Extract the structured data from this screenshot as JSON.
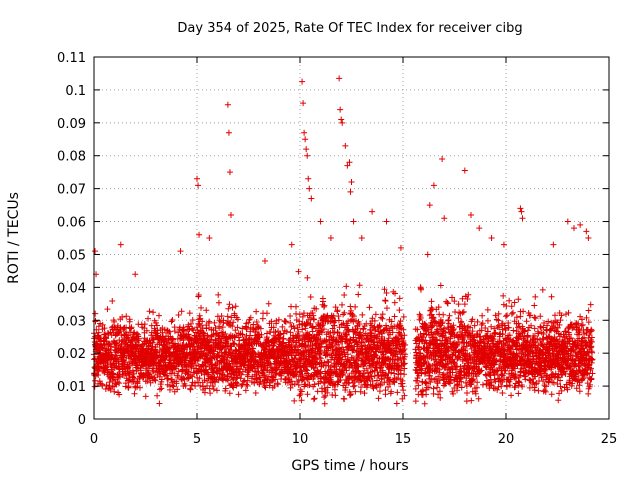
{
  "chart_data": {
    "type": "scatter",
    "title": "Day 354 of 2025, Rate Of TEC Index for receiver cibg",
    "xlabel": "GPS time / hours",
    "ylabel": "ROTI / TECUs",
    "xlim": [
      0,
      25
    ],
    "ylim": [
      0,
      0.11
    ],
    "x_ticks": [
      0,
      5,
      10,
      15,
      20,
      25
    ],
    "y_ticks": [
      0,
      0.01,
      0.02,
      0.03,
      0.04,
      0.05,
      0.06,
      0.07,
      0.08,
      0.09,
      0.1,
      0.11
    ],
    "grid": true,
    "marker": "+",
    "color": "#e00000",
    "series": [
      {
        "name": "ROTI",
        "gaps": [
          [
            15.1,
            15.6
          ]
        ],
        "x_range": [
          0,
          24.2
        ],
        "baseline_band": [
          0.005,
          0.03
        ],
        "notable_points": [
          [
            0.05,
            0.051
          ],
          [
            0.1,
            0.044
          ],
          [
            1.3,
            0.053
          ],
          [
            2.0,
            0.044
          ],
          [
            4.2,
            0.051
          ],
          [
            5.0,
            0.073
          ],
          [
            5.05,
            0.071
          ],
          [
            5.1,
            0.056
          ],
          [
            5.6,
            0.055
          ],
          [
            6.5,
            0.0955
          ],
          [
            6.55,
            0.087
          ],
          [
            6.6,
            0.075
          ],
          [
            6.65,
            0.062
          ],
          [
            8.3,
            0.048
          ],
          [
            9.6,
            0.053
          ],
          [
            10.1,
            0.1025
          ],
          [
            10.15,
            0.096
          ],
          [
            10.2,
            0.087
          ],
          [
            10.25,
            0.085
          ],
          [
            10.3,
            0.082
          ],
          [
            10.35,
            0.08
          ],
          [
            10.4,
            0.073
          ],
          [
            10.45,
            0.07
          ],
          [
            10.55,
            0.067
          ],
          [
            11.0,
            0.06
          ],
          [
            11.5,
            0.055
          ],
          [
            11.9,
            0.1035
          ],
          [
            11.95,
            0.094
          ],
          [
            12.0,
            0.091
          ],
          [
            12.05,
            0.09
          ],
          [
            12.2,
            0.083
          ],
          [
            12.3,
            0.077
          ],
          [
            12.4,
            0.078
          ],
          [
            12.5,
            0.072
          ],
          [
            12.45,
            0.069
          ],
          [
            12.6,
            0.06
          ],
          [
            13.0,
            0.055
          ],
          [
            13.5,
            0.063
          ],
          [
            14.2,
            0.06
          ],
          [
            14.9,
            0.052
          ],
          [
            16.2,
            0.05
          ],
          [
            16.3,
            0.065
          ],
          [
            16.5,
            0.071
          ],
          [
            16.9,
            0.079
          ],
          [
            17.0,
            0.061
          ],
          [
            18.0,
            0.0755
          ],
          [
            18.3,
            0.062
          ],
          [
            18.7,
            0.058
          ],
          [
            19.3,
            0.055
          ],
          [
            19.9,
            0.053
          ],
          [
            20.7,
            0.064
          ],
          [
            20.75,
            0.063
          ],
          [
            20.8,
            0.061
          ],
          [
            22.3,
            0.053
          ],
          [
            23.0,
            0.06
          ],
          [
            23.3,
            0.058
          ],
          [
            23.6,
            0.059
          ],
          [
            23.9,
            0.057
          ],
          [
            24.0,
            0.055
          ]
        ]
      }
    ]
  }
}
